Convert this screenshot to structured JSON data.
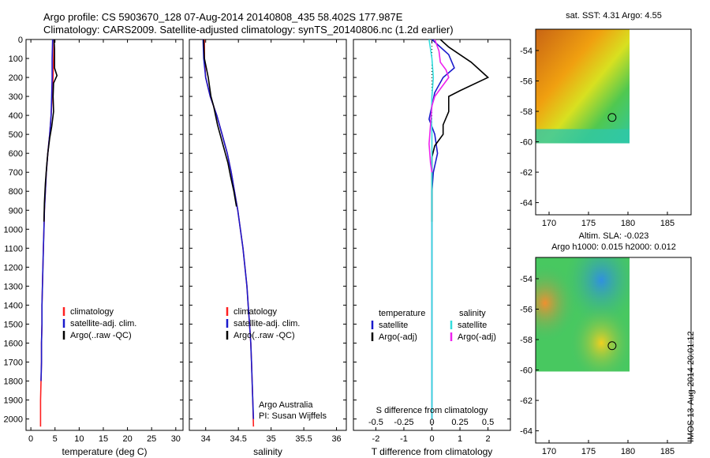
{
  "header": {
    "line1": "Argo profile: CS 5903670_128 07-Aug-2014 20140808_435 58.402S 177.987E",
    "line2": "Climatology: CARS2009. Satellite-adjusted climatology: synTS_20140806.nc (1.2d earlier)"
  },
  "stamp": "IMOS 13-Aug-2014 20:01:12",
  "colors": {
    "climatology": "#ff2020",
    "satellite": "#1a1acc",
    "argo": "#000000",
    "sat_salinity": "#33dddd",
    "argo_salinity_adj": "#ee22ee"
  },
  "depth_axis": {
    "ticks": [
      0,
      100,
      200,
      300,
      400,
      500,
      600,
      700,
      800,
      900,
      1000,
      1100,
      1200,
      1300,
      1400,
      1500,
      1600,
      1700,
      1800,
      1900,
      2000
    ],
    "ylim": [
      0,
      2060
    ]
  },
  "chart_data": [
    {
      "type": "line",
      "xlabel": "temperature (deg C)",
      "xlim": [
        -1,
        31.5
      ],
      "xticks": [
        0,
        5,
        10,
        15,
        20,
        25,
        30
      ],
      "legend": [
        "climatology",
        "satellite-adj. clim.",
        "Argo(..raw -QC)"
      ],
      "series": [
        {
          "name": "climatology",
          "color": "#ff2020",
          "x": [
            4.8,
            4.7,
            4.6,
            4.4,
            4.2,
            3.9,
            3.5,
            3.2,
            3.0,
            2.8,
            2.7,
            2.6,
            2.5,
            2.4,
            2.3,
            2.3,
            2.2,
            2.2,
            2.1,
            2.0,
            2.0
          ],
          "y": [
            0,
            100,
            200,
            300,
            400,
            500,
            600,
            700,
            800,
            900,
            1000,
            1100,
            1200,
            1300,
            1400,
            1500,
            1600,
            1700,
            1800,
            1900,
            2040
          ]
        },
        {
          "name": "satellite-adj. clim.",
          "color": "#1a1acc",
          "x": [
            4.5,
            4.4,
            4.4,
            4.3,
            4.2,
            3.9,
            3.5,
            3.2,
            3.0,
            2.8,
            2.7,
            2.6,
            2.5,
            2.4,
            2.3,
            2.3,
            2.2,
            2.2,
            2.1
          ],
          "y": [
            0,
            100,
            200,
            300,
            400,
            500,
            600,
            700,
            800,
            900,
            1000,
            1100,
            1200,
            1300,
            1400,
            1500,
            1600,
            1700,
            1800
          ]
        },
        {
          "name": "Argo(..raw -QC)",
          "color": "#000000",
          "x": [
            4.8,
            4.9,
            4.9,
            5.4,
            4.7,
            4.6,
            4.7,
            4.5,
            4.3,
            3.9,
            3.5,
            3.3,
            3.0,
            2.8,
            2.7
          ],
          "y": [
            0,
            50,
            150,
            190,
            230,
            300,
            380,
            420,
            460,
            520,
            600,
            660,
            760,
            860,
            960
          ]
        }
      ]
    },
    {
      "type": "line",
      "xlabel": "salinity",
      "xlim": [
        33.75,
        36.15
      ],
      "xticks": [
        34,
        34.5,
        35,
        35.5,
        36
      ],
      "xtick_labels": [
        "34",
        "34.5",
        "35",
        "35.5",
        "36"
      ],
      "legend": [
        "climatology",
        "satellite-adj. clim.",
        "Argo(..raw -QC)"
      ],
      "annotations": [
        "Argo Australia",
        "PI: Susan Wijffels"
      ],
      "series": [
        {
          "name": "climatology",
          "color": "#ff2020",
          "x": [
            33.98,
            33.98,
            34.0,
            34.07,
            34.17,
            34.25,
            34.33,
            34.39,
            34.44,
            34.49,
            34.53,
            34.57,
            34.6,
            34.63,
            34.65,
            34.67,
            34.69,
            34.7,
            34.71,
            34.72,
            34.73
          ],
          "y": [
            0,
            100,
            200,
            300,
            400,
            500,
            600,
            700,
            800,
            900,
            1000,
            1100,
            1200,
            1300,
            1400,
            1500,
            1600,
            1700,
            1800,
            1900,
            2040
          ]
        },
        {
          "name": "satellite-adj. clim.",
          "color": "#1a1acc",
          "x": [
            33.96,
            33.97,
            34.0,
            34.07,
            34.17,
            34.25,
            34.33,
            34.39,
            34.44,
            34.49,
            34.53,
            34.57,
            34.6,
            34.63,
            34.65,
            34.67,
            34.69,
            34.7,
            34.71,
            34.72,
            34.73
          ],
          "y": [
            0,
            100,
            200,
            300,
            400,
            500,
            600,
            700,
            800,
            900,
            1000,
            1100,
            1200,
            1300,
            1400,
            1500,
            1600,
            1700,
            1800,
            1900,
            2000
          ]
        },
        {
          "name": "Argo(..raw -QC)",
          "color": "#000000",
          "x": [
            33.97,
            33.98,
            34.04,
            34.08,
            34.12,
            34.18,
            34.26,
            34.34,
            34.38,
            34.43,
            34.47
          ],
          "y": [
            0,
            100,
            200,
            300,
            350,
            450,
            550,
            650,
            720,
            800,
            880
          ]
        }
      ]
    },
    {
      "type": "line",
      "xlabel": "T difference from climatology",
      "x2label": "S difference from climatology",
      "xlim": [
        -2.8,
        2.8
      ],
      "xticks": [
        -2,
        -1,
        0,
        1,
        2
      ],
      "x2ticks": [
        -0.5,
        -0.25,
        0,
        0.25,
        0.5
      ],
      "x2tick_labels": [
        "-0.5",
        "-0.25",
        "0",
        "0.25",
        "0.5"
      ],
      "legend_groups": [
        "temperature",
        "salinity"
      ],
      "legend": [
        "satellite",
        "Argo(-adj)",
        "satellite",
        "Argo(-adj)"
      ],
      "series": [
        {
          "name": "temperature satellite",
          "color": "#1a1acc",
          "x": [
            0,
            0.3,
            0.6,
            0.8,
            0.4,
            0.1,
            0,
            -0.1,
            0.1,
            0.2,
            0.05,
            0,
            0,
            0
          ],
          "y": [
            0,
            40,
            80,
            150,
            200,
            280,
            350,
            420,
            500,
            600,
            700,
            800,
            1200,
            2000
          ]
        },
        {
          "name": "temperature Argo(-adj)",
          "color": "#000000",
          "x": [
            0.3,
            0.6,
            1.0,
            1.4,
            2.0,
            1.0,
            0.6,
            0.6,
            0.4,
            0.4,
            0.1,
            0,
            0,
            0,
            0
          ],
          "y": [
            0,
            40,
            80,
            120,
            200,
            270,
            300,
            380,
            450,
            500,
            560,
            620,
            700,
            800,
            960
          ]
        },
        {
          "name": "salinity satellite",
          "color": "#33dddd",
          "x": [
            -0.1,
            0,
            0.05,
            0,
            -0.02,
            0,
            0,
            0
          ],
          "y": [
            0,
            100,
            200,
            300,
            400,
            500,
            1000,
            2000
          ]
        },
        {
          "name": "salinity Argo(-adj)",
          "color": "#ee22ee",
          "x": [
            0.1,
            0.25,
            0.3,
            0.5,
            0.6,
            0.3,
            0.1,
            0,
            -0.1,
            -0.05,
            0
          ],
          "y": [
            0,
            60,
            120,
            160,
            200,
            260,
            300,
            350,
            550,
            650,
            700
          ]
        }
      ]
    }
  ],
  "maps": [
    {
      "title": "sat. SST: 4.31  Argo: 4.55",
      "xticks": [
        170,
        175,
        180,
        185
      ],
      "yticks": [
        -54,
        -56,
        -58,
        -60,
        -62,
        -64
      ],
      "xlim": [
        168.3,
        188
      ],
      "ylim": [
        -64.8,
        -52.6
      ],
      "data_extent": {
        "lon": [
          168.3,
          180.2
        ],
        "lat": [
          -60.1,
          -52.6
        ]
      },
      "marker": {
        "lon": 177.987,
        "lat": -58.402
      }
    },
    {
      "title": "Altim. SLA: -0.023",
      "subtitle": "Argo h1000: 0.015  h2000: 0.012",
      "xticks": [
        170,
        175,
        180,
        185
      ],
      "yticks": [
        -54,
        -56,
        -58,
        -60,
        -62,
        -64
      ],
      "xlim": [
        168.3,
        188
      ],
      "ylim": [
        -64.8,
        -52.6
      ],
      "data_extent": {
        "lon": [
          168.3,
          180.2
        ],
        "lat": [
          -60.1,
          -52.6
        ]
      },
      "marker": {
        "lon": 177.987,
        "lat": -58.402
      }
    }
  ]
}
